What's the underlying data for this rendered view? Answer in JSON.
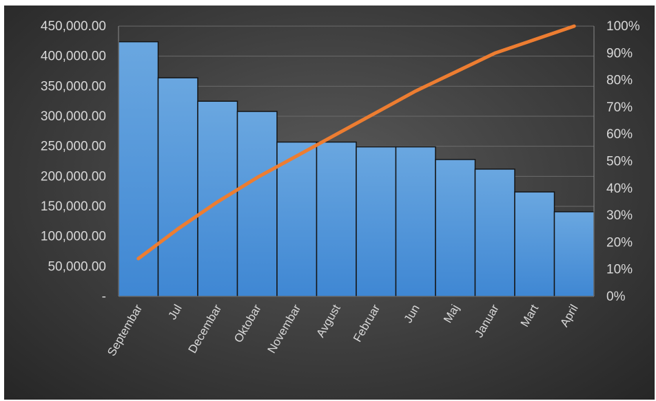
{
  "chart_data": {
    "type": "bar",
    "subtype": "pareto",
    "title": "",
    "xlabel": "",
    "ylabel": "",
    "categories": [
      "Septembar",
      "Jul",
      "Decembar",
      "Oktobar",
      "Novembar",
      "Avgust",
      "Februar",
      "Jun",
      "Maj",
      "Januar",
      "Mart",
      "April"
    ],
    "series": [
      {
        "type": "bar",
        "values": [
          424000,
          364000,
          325000,
          308000,
          257000,
          257000,
          249000,
          249000,
          228000,
          212000,
          174000,
          141000
        ],
        "color": "#5b9bd5"
      },
      {
        "type": "line",
        "axis": "secondary",
        "values": [
          0.14,
          0.25,
          0.35,
          0.44,
          0.52,
          0.6,
          0.68,
          0.76,
          0.83,
          0.9,
          0.95,
          1.0
        ],
        "color": "#ed7d31"
      }
    ],
    "ylim": [
      0,
      450000
    ],
    "y2lim": [
      0,
      1
    ],
    "y_ticks": [
      "-",
      "50,000.00",
      "100,000.00",
      "150,000.00",
      "200,000.00",
      "250,000.00",
      "300,000.00",
      "350,000.00",
      "400,000.00",
      "450,000.00"
    ],
    "y2_ticks": [
      "0%",
      "10%",
      "20%",
      "30%",
      "40%",
      "50%",
      "60%",
      "70%",
      "80%",
      "90%",
      "100%"
    ],
    "grid": true,
    "legend": "none"
  }
}
